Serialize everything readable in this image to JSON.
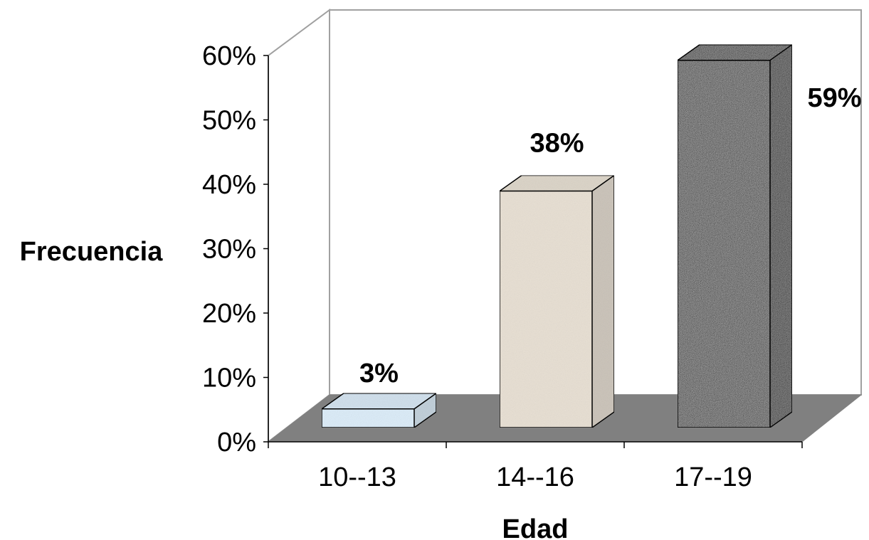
{
  "chart_data": {
    "type": "bar",
    "style": "3d-column",
    "categories": [
      "10--13",
      "14--16",
      "17--19"
    ],
    "values": [
      3,
      38,
      59
    ],
    "data_labels": [
      "3%",
      "38%",
      "59%"
    ],
    "xlabel": "Edad",
    "ylabel": "Frecuencia",
    "ylim": [
      0,
      60
    ],
    "yticks": [
      "0%",
      "10%",
      "20%",
      "30%",
      "40%",
      "50%",
      "60%"
    ],
    "grid": false,
    "legend": "none",
    "colors": {
      "floor": "#808080",
      "bar_fills": [
        "#dcecf8",
        "#e8e0d4",
        "#9a9a9a"
      ],
      "outline": "#000000",
      "wall": "#ffffff",
      "wall_edge": "#a0a0a0"
    }
  }
}
